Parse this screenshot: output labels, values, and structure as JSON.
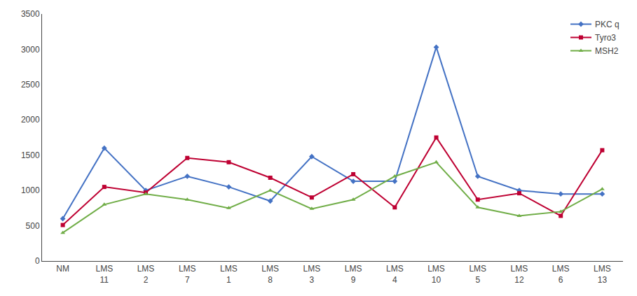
{
  "chart_data": {
    "type": "line",
    "categories": [
      "NM",
      "LMS\n11",
      "LMS\n2",
      "LMS\n7",
      "LMS\n1",
      "LMS\n8",
      "LMS\n3",
      "LMS\n9",
      "LMS\n4",
      "LMS\n10",
      "LMS\n5",
      "LMS\n12",
      "LMS\n6",
      "LMS\n13"
    ],
    "series": [
      {
        "name": "PKC q",
        "color": "#4472C4",
        "marker": "diamond",
        "values": [
          600,
          1600,
          1000,
          1200,
          1050,
          850,
          1480,
          1130,
          1130,
          3030,
          1200,
          1000,
          950,
          950
        ]
      },
      {
        "name": "Tyro3",
        "color": "#BE0032",
        "marker": "square",
        "values": [
          510,
          1050,
          970,
          1460,
          1400,
          1180,
          900,
          1230,
          760,
          1750,
          870,
          960,
          640,
          1570
        ]
      },
      {
        "name": "MSH2",
        "color": "#70AD47",
        "marker": "triangle-up",
        "values": [
          400,
          800,
          950,
          870,
          750,
          1000,
          740,
          870,
          1200,
          1400,
          760,
          640,
          700,
          1020
        ]
      }
    ],
    "ylim": [
      0,
      3500
    ],
    "yticks": [
      0,
      500,
      1000,
      1500,
      2000,
      2500,
      3000,
      3500
    ],
    "grid": false,
    "legend": "upper right"
  }
}
